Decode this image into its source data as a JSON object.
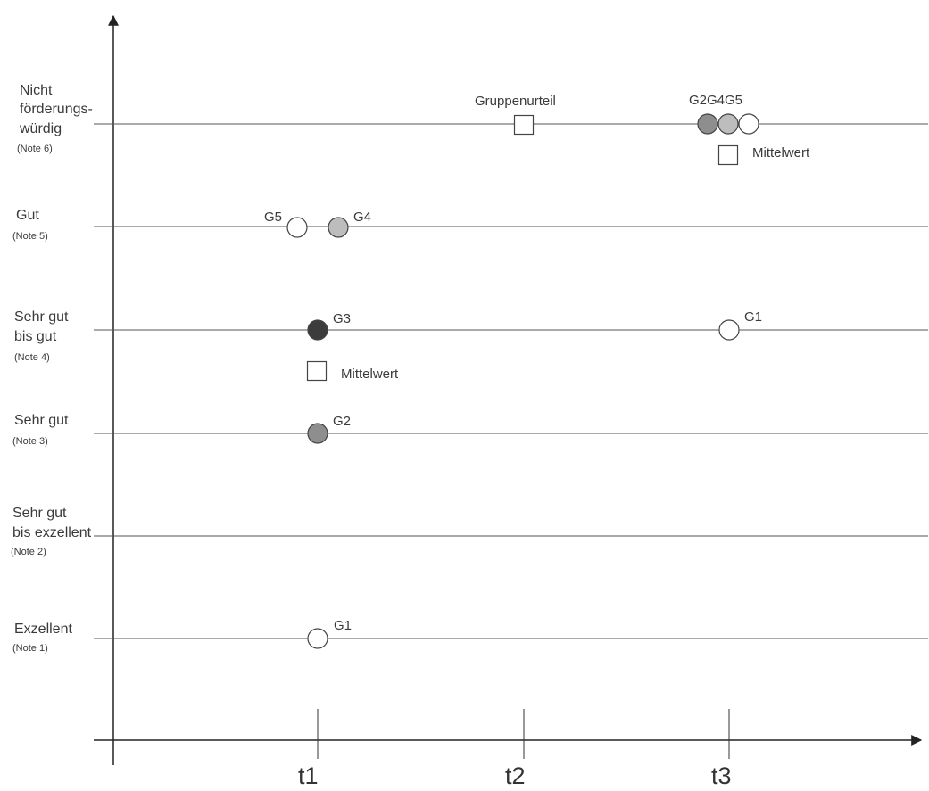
{
  "rows": [
    {
      "id": "note6",
      "lines": [
        "Nicht",
        "förderungs-",
        "würdig"
      ],
      "note": "(Note 6)"
    },
    {
      "id": "note5",
      "lines": [
        "Gut"
      ],
      "note": "(Note 5)"
    },
    {
      "id": "note4",
      "lines": [
        "Sehr gut",
        "bis gut"
      ],
      "note": "(Note 4)"
    },
    {
      "id": "note3",
      "lines": [
        "Sehr gut"
      ],
      "note": "(Note 3)"
    },
    {
      "id": "note2",
      "lines": [
        "Sehr gut",
        "bis exzellent"
      ],
      "note": "(Note 2)"
    },
    {
      "id": "note1",
      "lines": [
        "Exzellent"
      ],
      "note": "(Note 1)"
    }
  ],
  "times": [
    "t1",
    "t2",
    "t3"
  ],
  "markers": [
    {
      "label": "G5",
      "note": 5,
      "time": "t1",
      "fill": "#ffffff"
    },
    {
      "label": "G4",
      "note": 5,
      "time": "t1",
      "fill": "#bdbdbd"
    },
    {
      "label": "G3",
      "note": 4,
      "time": "t1",
      "fill": "#3c3c3c"
    },
    {
      "label": "G2",
      "note": 3,
      "time": "t1",
      "fill": "#8e8e8e"
    },
    {
      "label": "G1",
      "note": 1,
      "time": "t1",
      "fill": "#ffffff"
    },
    {
      "label": "G1",
      "note": 4,
      "time": "t3",
      "fill": "#ffffff"
    },
    {
      "label": "G2G4G5",
      "note": 6,
      "time": "t3",
      "fills": [
        "#8e8e8e",
        "#bdbdbd",
        "#ffffff"
      ]
    }
  ],
  "squares": [
    {
      "label": "Gruppenurteil",
      "note": 6,
      "time": "t2"
    },
    {
      "label": "Mittelwert",
      "note": 4,
      "time": "t1"
    },
    {
      "label": "Mittelwert",
      "note": 6,
      "time": "t3"
    }
  ]
}
